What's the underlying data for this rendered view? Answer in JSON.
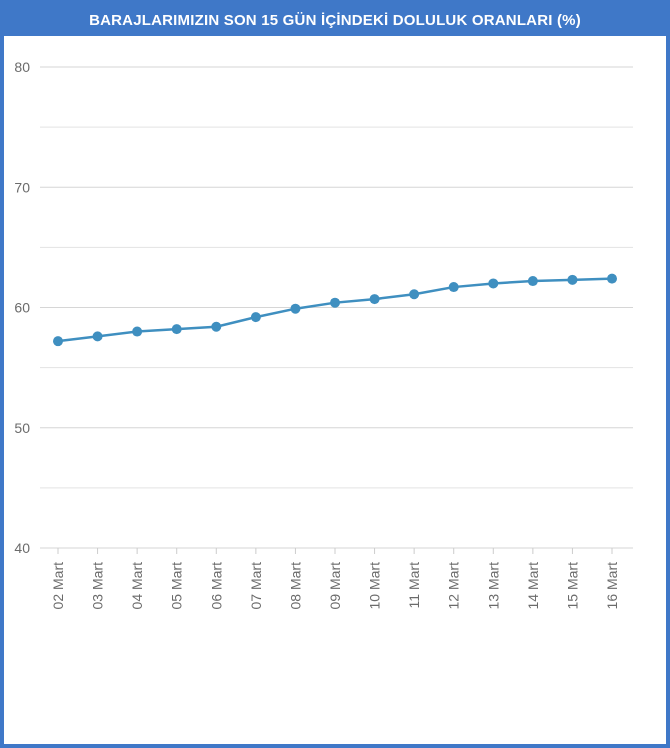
{
  "chart_data": {
    "type": "line",
    "title": "BARAJLARIMIZIN SON 15 GÜN İÇİNDEKİ DOLULUK ORANLARI (%)",
    "categories": [
      "02 Mart",
      "03 Mart",
      "04 Mart",
      "05 Mart",
      "06 Mart",
      "07 Mart",
      "08 Mart",
      "09 Mart",
      "10 Mart",
      "11 Mart",
      "12 Mart",
      "13 Mart",
      "14 Mart",
      "15 Mart",
      "16 Mart"
    ],
    "series": [
      {
        "values": [
          57.2,
          57.6,
          58.0,
          58.2,
          58.4,
          59.2,
          59.9,
          60.4,
          60.7,
          61.1,
          61.7,
          62.0,
          62.2,
          62.3,
          62.4
        ]
      }
    ],
    "ylim": [
      40,
      80
    ],
    "yticks": [
      40,
      50,
      60,
      70,
      80
    ],
    "grid": true,
    "line_color": "#3f8fc0",
    "grid_color": "#e3e3e3"
  }
}
